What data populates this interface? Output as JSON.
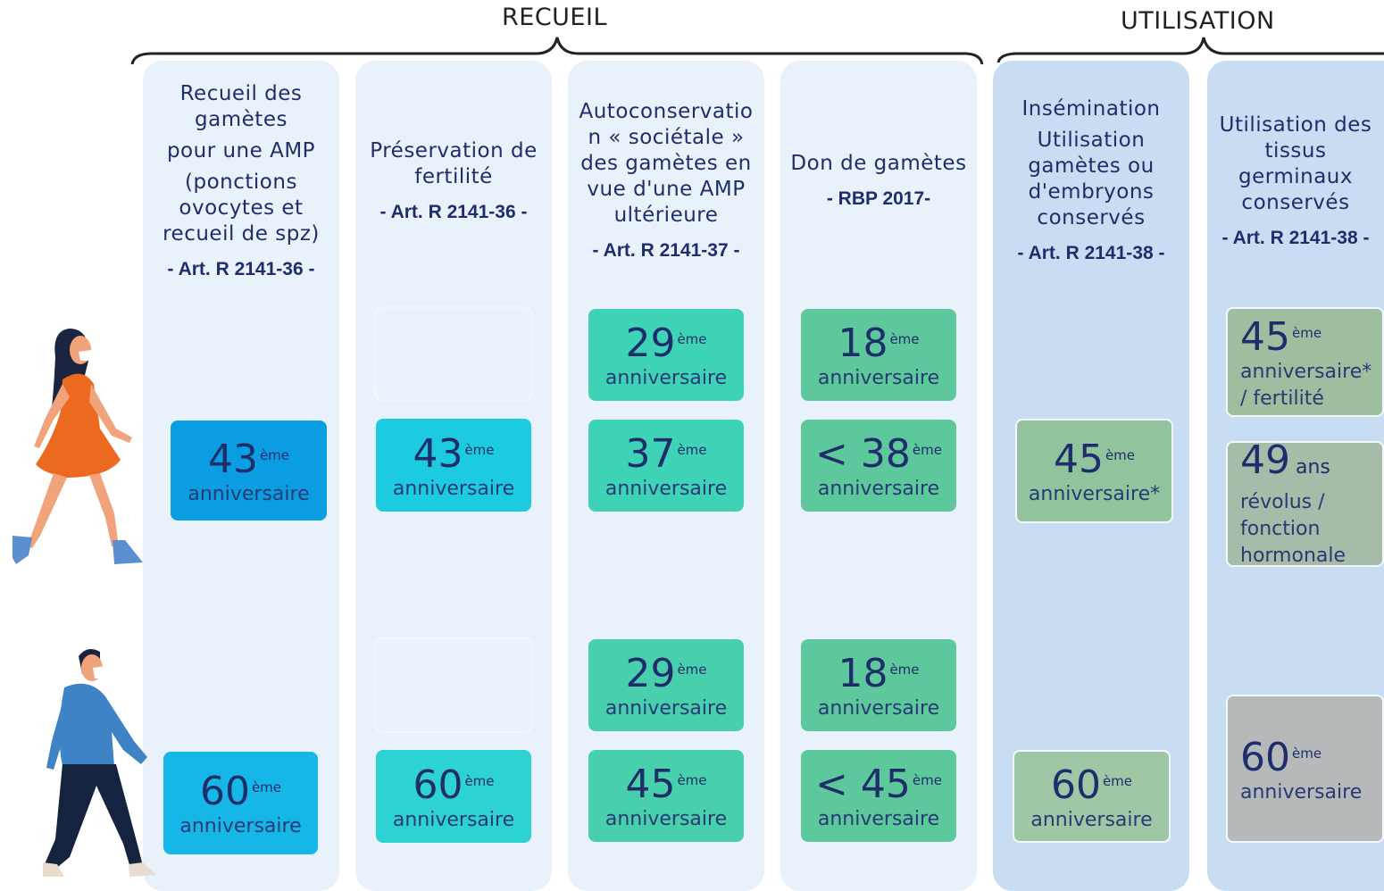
{
  "groups": [
    "RECUEIL",
    "UTILISATION"
  ],
  "columns": [
    {
      "title": [
        "Recueil des gamètes",
        "pour une AMP",
        "(ponctions ovocytes et recueil de spz)"
      ],
      "reference": "- Art. R 2141-36 -",
      "woman": [
        {
          "number": "43",
          "suffix": "ème",
          "text": "anniversaire",
          "color": "#0b9de2"
        }
      ],
      "man": [
        {
          "number": "60",
          "suffix": "ème",
          "text": "anniversaire",
          "color": "#14b7e8"
        }
      ]
    },
    {
      "title": [
        "Préservation de fertilité"
      ],
      "reference": "- Art. R 2141-36 -",
      "woman": [
        {
          "number": "43",
          "suffix": "ème",
          "text": "anniversaire",
          "color": "#1dcbe0"
        }
      ],
      "man": [
        {
          "number": "60",
          "suffix": "ème",
          "text": "anniversaire",
          "color": "#2dd3d2"
        }
      ]
    },
    {
      "title": [
        "Autoconservation « sociétale » des gamètes en vue d'une AMP ultérieure"
      ],
      "reference": "- Art. R 2141-37 -",
      "woman": [
        {
          "number": "29",
          "suffix": "ème",
          "text": "anniversaire",
          "color": "#3ed3b6"
        },
        {
          "number": "37",
          "suffix": "ème",
          "text": "anniversaire",
          "color": "#3ed3b6"
        }
      ],
      "man": [
        {
          "number": "29",
          "suffix": "ème",
          "text": "anniversaire",
          "color": "#48cfac"
        },
        {
          "number": "45",
          "suffix": "ème",
          "text": "anniversaire",
          "color": "#48cfac"
        }
      ]
    },
    {
      "title": [
        "Don de gamètes"
      ],
      "reference": "- RBP 2017-",
      "woman": [
        {
          "number": "18",
          "suffix": "ème",
          "text": "anniversaire",
          "color": "#5cc89b"
        },
        {
          "number": "< 38",
          "suffix": "ème",
          "text": "anniversaire",
          "color": "#5cc89b"
        }
      ],
      "man": [
        {
          "number": "18",
          "suffix": "ème",
          "text": "anniversaire",
          "color": "#5cc89b"
        },
        {
          "number": "< 45",
          "suffix": "ème",
          "text": "anniversaire",
          "color": "#5cc89b"
        }
      ]
    },
    {
      "title": [
        "Insémination",
        "Utilisation gamètes ou d'embryons conservés"
      ],
      "reference": "- Art. R 2141-38 -",
      "woman": [
        {
          "number": "45",
          "suffix": "ème",
          "text": "anniversaire*",
          "color": "#91c39d"
        }
      ],
      "man": [
        {
          "number": "60",
          "suffix": "ème",
          "text": "anniversaire",
          "color": "#9fc6a5"
        }
      ]
    },
    {
      "title": [
        "Utilisation des tissus germinaux conservés"
      ],
      "reference": "- Art. R 2141-38 -",
      "woman": [
        {
          "number": "45",
          "suffix": "ème",
          "text": "anniversaire* / fertilité",
          "color": "#9dbf9f"
        },
        {
          "number": "49",
          "suffix": "ans",
          "text": "révolus / fonction hormonale",
          "color": "#a6bca8"
        }
      ],
      "man": [
        {
          "number": "60",
          "suffix": "ème",
          "text": "anniversaire",
          "color": "#b5b9b9"
        }
      ]
    }
  ]
}
